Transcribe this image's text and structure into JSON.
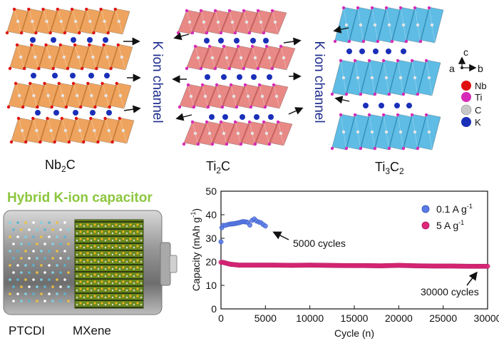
{
  "structures": {
    "nb2c": {
      "base": "Nb",
      "sub": "2",
      "tail": "C"
    },
    "ti2c": {
      "base": "Ti",
      "sub": "2",
      "tail": "C"
    },
    "ti3c2": {
      "base": "Ti",
      "sub": "3",
      "mid": "C",
      "sub2": "2"
    }
  },
  "channel_label_1": "K ion channel",
  "channel_label_2": "K ion channel",
  "axes_widget": {
    "c": "c",
    "a": "a",
    "b": "b"
  },
  "atom_legend": [
    "Nb",
    "Ti",
    "C",
    "K"
  ],
  "colors": {
    "nb_octa": "#e8862a",
    "ti2c_octa": "#e0615e",
    "ti3c2_octa": "#2aa6dc",
    "k_atom": "#1a2fb8",
    "nb_atom": "#e01010",
    "ti_atom": "#d62ab8",
    "c_atom": "#b8b8b8",
    "capacitor_title": "#8cc63f",
    "series_low": "#5b7be6",
    "series_high": "#e0287a"
  },
  "capacitor": {
    "title": "Hybrid K-ion capacitor",
    "left_label": "PTCDI",
    "right_label": "MXene"
  },
  "chart_data": {
    "type": "scatter",
    "xlabel": "Cycle (n)",
    "ylabel": "Capacity (mAh g",
    "ylabel_sup": "-1",
    "ylabel_tail": ")",
    "xlim": [
      0,
      30000
    ],
    "ylim": [
      0,
      50
    ],
    "x_ticks": [
      0,
      5000,
      10000,
      15000,
      20000,
      25000,
      30000
    ],
    "y_ticks": [
      0,
      10,
      20,
      30,
      40,
      50
    ],
    "series": [
      {
        "name": "0.1 A g",
        "sup": "-1",
        "color": "#5b7be6",
        "x": [
          0,
          100,
          250,
          500,
          750,
          1000,
          1500,
          2000,
          2500,
          3000,
          3250,
          3500,
          3750,
          4000,
          4250,
          4500,
          4750,
          5000
        ],
        "y": [
          28.5,
          34.5,
          35.5,
          35.5,
          35.8,
          36,
          36.2,
          36.6,
          37.1,
          36.8,
          35.6,
          37.6,
          38.2,
          37.3,
          36.9,
          36.6,
          35.8,
          35.2
        ]
      },
      {
        "name": "5 A g",
        "sup": "-1",
        "color": "#e0287a",
        "x": [
          0,
          200,
          500,
          1000,
          2000,
          4000,
          6000,
          8000,
          10000,
          12000,
          14000,
          16000,
          18000,
          20000,
          22000,
          24000,
          26000,
          28000,
          30000
        ],
        "y": [
          19.8,
          19.8,
          19.5,
          19,
          18.6,
          18.6,
          18.6,
          18.5,
          18.6,
          18.5,
          18.4,
          18.4,
          18.3,
          18.5,
          18.3,
          18.2,
          18.2,
          18.1,
          18.1
        ]
      }
    ],
    "annotations": [
      {
        "text": "5000 cycles",
        "series": 0
      },
      {
        "text": "30000 cycles",
        "series": 1
      }
    ],
    "legend": "top-right"
  }
}
